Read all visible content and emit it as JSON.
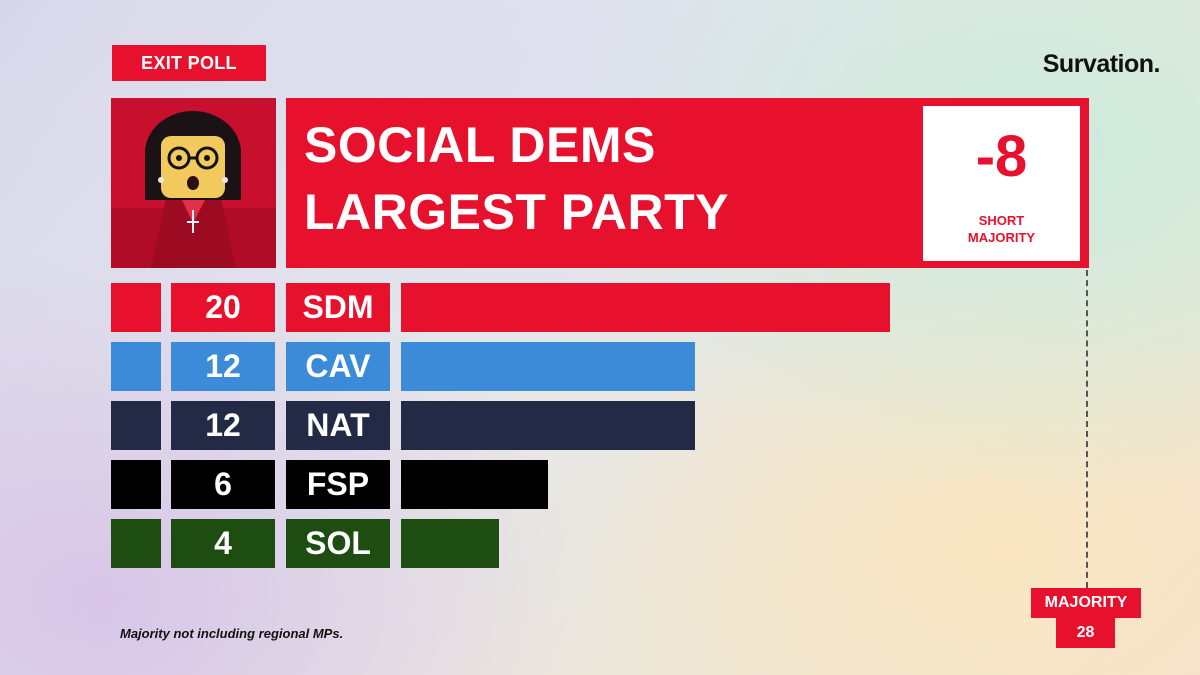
{
  "badge": "EXIT POLL",
  "brand": "Survation.",
  "headline": [
    "SOCIAL DEMS",
    "LARGEST PARTY"
  ],
  "short_majority": {
    "value": "-8",
    "label_1": "SHORT",
    "label_2": "MAJORITY"
  },
  "majority": {
    "label": "MAJORITY",
    "value": "28"
  },
  "footnote": "Majority not including regional MPs.",
  "chart_data": {
    "type": "bar",
    "orientation": "horizontal",
    "categories": [
      "SDM",
      "CAV",
      "NAT",
      "FSP",
      "SOL"
    ],
    "values": [
      20,
      12,
      12,
      6,
      4
    ],
    "colors": [
      "#e8112d",
      "#3b8bd8",
      "#222a45",
      "#000000",
      "#1e4d12"
    ],
    "xlim": [
      0,
      28
    ],
    "reference_line": {
      "label": "MAJORITY",
      "value": 28
    },
    "grid": false,
    "legend": "none"
  }
}
